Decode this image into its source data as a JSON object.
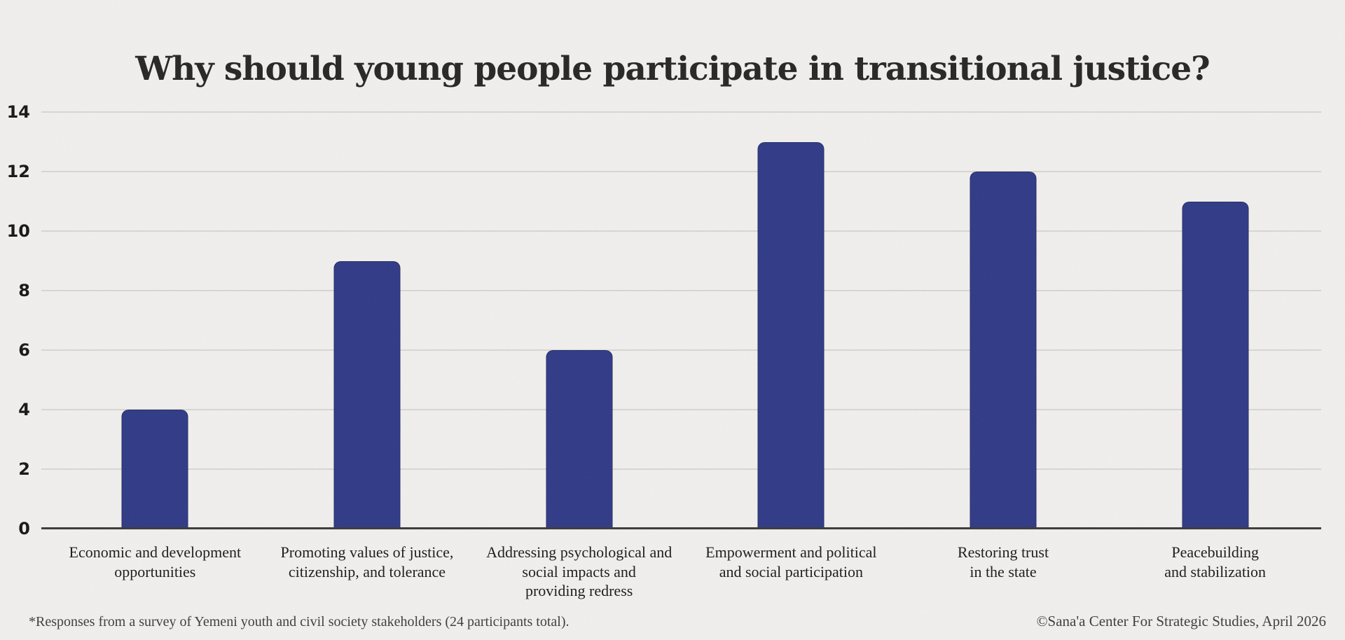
{
  "page": {
    "background_color": "#f0efed"
  },
  "title": "Why should young people participate in transitional justice?",
  "chart_data": {
    "type": "bar",
    "title": "Why should young people participate in transitional justice?",
    "categories": [
      "Economic and development\nopportunities",
      "Promoting values of justice,\ncitizenship, and tolerance",
      "Addressing psychological and\nsocial impacts and\nproviding redress",
      "Empowerment and political\nand social participation",
      "Restoring trust\nin the state",
      "Peacebuilding\nand stabilization"
    ],
    "values": [
      4,
      9,
      6,
      13,
      12,
      11
    ],
    "xlabel": "",
    "ylabel": "",
    "ylim": [
      0,
      14
    ],
    "yticks": [
      0,
      2,
      4,
      6,
      8,
      10,
      12,
      14
    ],
    "grid": true,
    "legend": false,
    "bar_color": "#303a86",
    "bar_border_color": "#272c66",
    "gridline_color": "#d7d6d3",
    "axis_line_color": "#3c3b37"
  },
  "footer": {
    "note": "*Responses from a survey of Yemeni youth and civil society stakeholders (24 participants total).",
    "credit": "©Sana'a Center For Strategic Studies, April 2026"
  }
}
